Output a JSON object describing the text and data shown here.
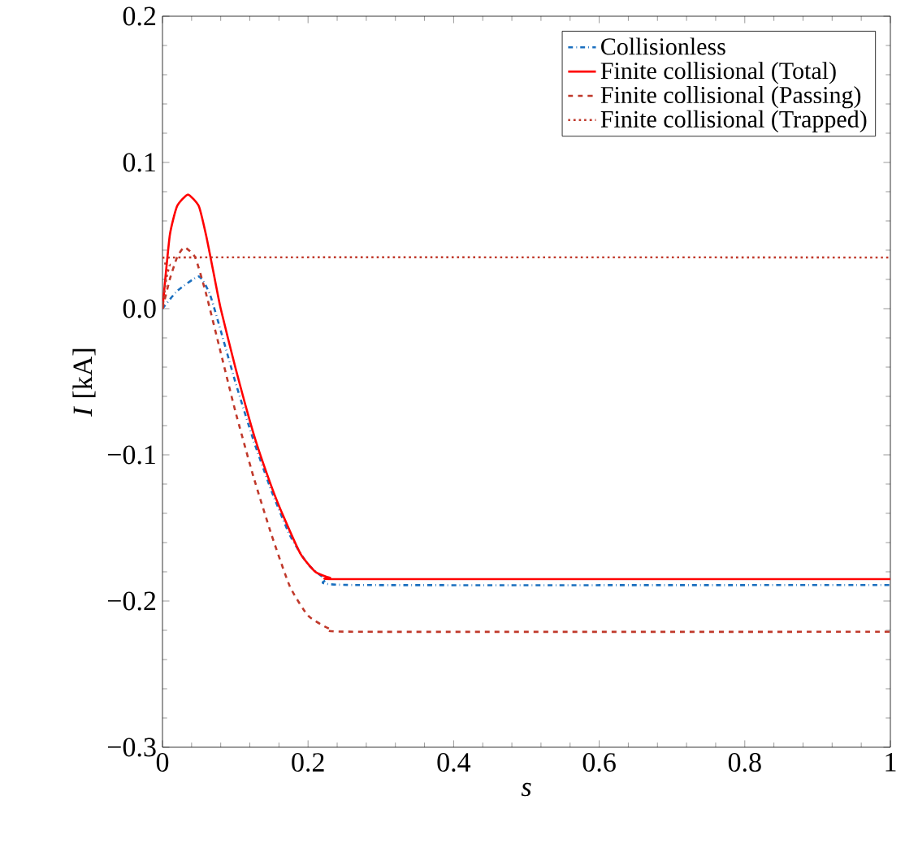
{
  "chart_data": {
    "type": "line",
    "xlabel": "s",
    "ylabel": "*I* [kA]",
    "xlim": [
      0,
      1
    ],
    "ylim": [
      -0.3,
      0.2
    ],
    "xticks": [
      0,
      0.2,
      0.4,
      0.6,
      0.8,
      1
    ],
    "yticks": [
      {
        "value": -0.3,
        "label": "−0.3"
      },
      {
        "value": -0.2,
        "label": "−0.2"
      },
      {
        "value": -0.1,
        "label": "−0.1"
      },
      {
        "value": 0,
        "label": "0.0"
      },
      0.1,
      0.2
    ],
    "legend": "top right",
    "grid": false,
    "marker": "none",
    "series": [
      {
        "name": "Collisionless",
        "color": "#1a6fbf",
        "line_style": "dashdot",
        "x": [
          0,
          0.02,
          0.05,
          0.065,
          0.08,
          0.1,
          0.125,
          0.15,
          0.175,
          0.2,
          0.225,
          0.26,
          1
        ],
        "values": [
          0,
          0.012,
          0.022,
          0.01,
          -0.015,
          -0.05,
          -0.09,
          -0.125,
          -0.155,
          -0.175,
          -0.185,
          -0.189,
          -0.189
        ]
      },
      {
        "name": "Finite collisional (Total)",
        "color": "#ff0000",
        "line_style": "solid",
        "x": [
          0,
          0.01,
          0.02,
          0.035,
          0.05,
          0.06,
          0.07,
          0.08,
          0.1,
          0.126,
          0.15,
          0.167,
          0.19,
          0.21,
          0.23,
          0.26,
          1
        ],
        "values": [
          0,
          0.05,
          0.07,
          0.078,
          0.07,
          0.05,
          0.025,
          0.0,
          -0.04,
          -0.087,
          -0.122,
          -0.143,
          -0.168,
          -0.18,
          -0.184,
          -0.185,
          -0.185
        ]
      },
      {
        "name": "Finite collisional (Passing)",
        "color": "#c0392b",
        "line_style": "dashed",
        "x": [
          0,
          0.01,
          0.02,
          0.03,
          0.045,
          0.06,
          0.08,
          0.1,
          0.125,
          0.15,
          0.175,
          0.2,
          0.23,
          0.27,
          1
        ],
        "values": [
          0,
          0.02,
          0.035,
          0.042,
          0.035,
          0.01,
          -0.03,
          -0.07,
          -0.115,
          -0.155,
          -0.19,
          -0.21,
          -0.219,
          -0.221,
          -0.221
        ]
      },
      {
        "name": "Finite collisional (Trapped)",
        "color": "#c0392b",
        "line_style": "dotted",
        "x": [
          0,
          0.005,
          0.01,
          0.015,
          1
        ],
        "values": [
          0,
          0.02,
          0.03,
          0.035,
          0.035
        ]
      }
    ]
  }
}
